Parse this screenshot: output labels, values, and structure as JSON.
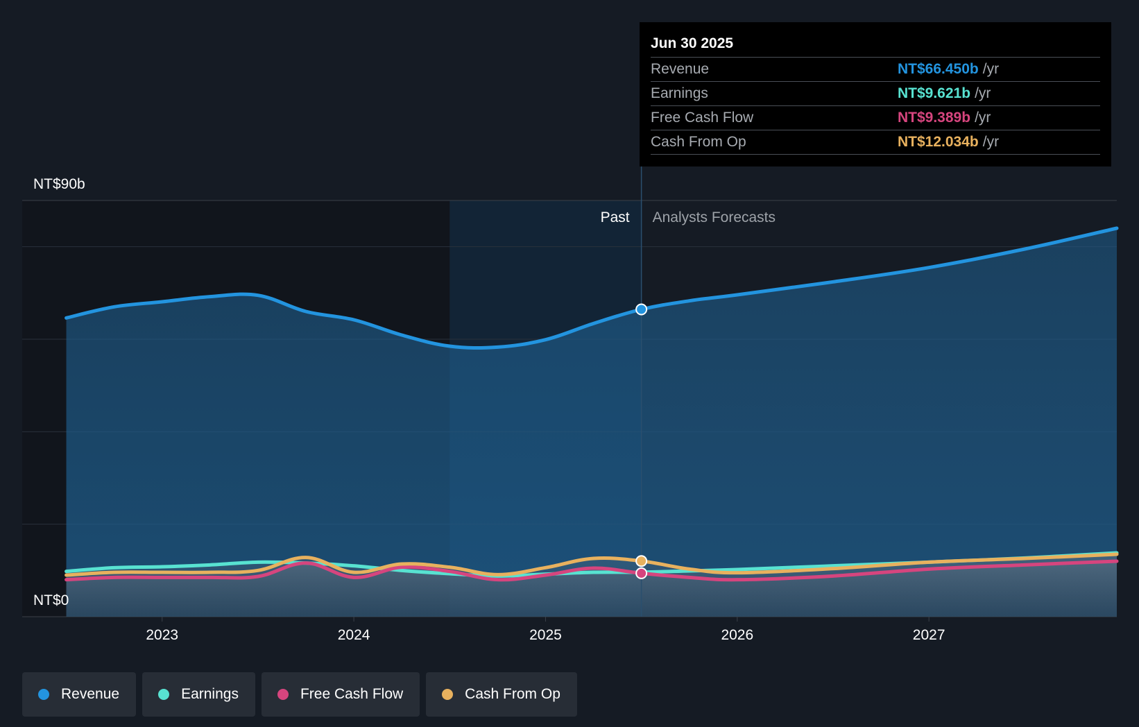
{
  "chart_data": {
    "type": "area",
    "x_ticks": [
      "2023",
      "2024",
      "2025",
      "2026",
      "2027"
    ],
    "x_tick_values": [
      2023.0,
      2024.0,
      2025.0,
      2026.0,
      2027.0
    ],
    "xlim": [
      2022.27,
      2027.98
    ],
    "ylim": [
      0,
      90
    ],
    "y_labels": {
      "top": "NT$90b",
      "bottom": "NT$0"
    },
    "y_gridlines": [
      0,
      20,
      40,
      60,
      80,
      90
    ],
    "divider_x": 2025.5,
    "highlight_start_x": 2024.5,
    "past_label": "Past",
    "forecast_label": "Analysts Forecasts",
    "series": [
      {
        "name": "Revenue",
        "color": "#2394df",
        "area": true,
        "points": [
          [
            2022.5,
            64.6
          ],
          [
            2022.75,
            67.0
          ],
          [
            2023.0,
            68.1
          ],
          [
            2023.25,
            69.2
          ],
          [
            2023.5,
            69.5
          ],
          [
            2023.75,
            66.0
          ],
          [
            2024.0,
            64.2
          ],
          [
            2024.25,
            60.9
          ],
          [
            2024.5,
            58.5
          ],
          [
            2024.75,
            58.3
          ],
          [
            2025.0,
            59.9
          ],
          [
            2025.25,
            63.4
          ],
          [
            2025.5,
            66.45
          ],
          [
            2025.75,
            68.3
          ],
          [
            2026.0,
            69.6
          ],
          [
            2026.5,
            72.4
          ],
          [
            2027.0,
            75.5
          ],
          [
            2027.5,
            79.5
          ],
          [
            2027.98,
            84.0
          ]
        ]
      },
      {
        "name": "Earnings",
        "color": "#58e2d1",
        "area": true,
        "points": [
          [
            2022.5,
            9.8
          ],
          [
            2022.75,
            10.6
          ],
          [
            2023.0,
            10.8
          ],
          [
            2023.25,
            11.2
          ],
          [
            2023.5,
            11.8
          ],
          [
            2023.75,
            11.6
          ],
          [
            2024.0,
            11.0
          ],
          [
            2024.25,
            10.0
          ],
          [
            2024.5,
            9.3
          ],
          [
            2024.75,
            8.8
          ],
          [
            2025.0,
            9.2
          ],
          [
            2025.25,
            9.6
          ],
          [
            2025.5,
            9.621
          ],
          [
            2025.75,
            9.9
          ],
          [
            2026.0,
            10.2
          ],
          [
            2026.5,
            11.0
          ],
          [
            2027.0,
            11.8
          ],
          [
            2027.5,
            12.7
          ],
          [
            2027.98,
            13.8
          ]
        ]
      },
      {
        "name": "Free Cash Flow",
        "color": "#d6457e",
        "area": true,
        "points": [
          [
            2022.5,
            8.0
          ],
          [
            2022.75,
            8.5
          ],
          [
            2023.0,
            8.5
          ],
          [
            2023.25,
            8.5
          ],
          [
            2023.5,
            8.7
          ],
          [
            2023.75,
            11.6
          ],
          [
            2024.0,
            8.5
          ],
          [
            2024.25,
            10.7
          ],
          [
            2024.5,
            9.8
          ],
          [
            2024.75,
            8.0
          ],
          [
            2025.0,
            9.0
          ],
          [
            2025.25,
            10.5
          ],
          [
            2025.5,
            9.389
          ],
          [
            2025.75,
            8.5
          ],
          [
            2026.0,
            8.0
          ],
          [
            2026.5,
            8.8
          ],
          [
            2027.0,
            10.3
          ],
          [
            2027.5,
            11.2
          ],
          [
            2027.98,
            12.0
          ]
        ]
      },
      {
        "name": "Cash From Op",
        "color": "#e8b15e",
        "area": true,
        "points": [
          [
            2022.5,
            9.0
          ],
          [
            2022.75,
            9.6
          ],
          [
            2023.0,
            9.6
          ],
          [
            2023.25,
            9.6
          ],
          [
            2023.5,
            10.0
          ],
          [
            2023.75,
            12.8
          ],
          [
            2024.0,
            9.6
          ],
          [
            2024.25,
            11.4
          ],
          [
            2024.5,
            10.7
          ],
          [
            2024.75,
            9.1
          ],
          [
            2025.0,
            10.6
          ],
          [
            2025.25,
            12.6
          ],
          [
            2025.5,
            12.034
          ],
          [
            2025.75,
            10.3
          ],
          [
            2026.0,
            9.5
          ],
          [
            2026.5,
            10.4
          ],
          [
            2027.0,
            11.8
          ],
          [
            2027.5,
            12.6
          ],
          [
            2027.98,
            13.5
          ]
        ]
      }
    ]
  },
  "tooltip": {
    "date": "Jun 30 2025",
    "rows": [
      {
        "label": "Revenue",
        "value": "NT$66.450b",
        "unit": "/yr",
        "color": "#2394df"
      },
      {
        "label": "Earnings",
        "value": "NT$9.621b",
        "unit": "/yr",
        "color": "#58e2d1"
      },
      {
        "label": "Free Cash Flow",
        "value": "NT$9.389b",
        "unit": "/yr",
        "color": "#d6457e"
      },
      {
        "label": "Cash From Op",
        "value": "NT$12.034b",
        "unit": "/yr",
        "color": "#e8b15e"
      }
    ]
  },
  "legend": [
    {
      "label": "Revenue",
      "color": "#2394df"
    },
    {
      "label": "Earnings",
      "color": "#58e2d1"
    },
    {
      "label": "Free Cash Flow",
      "color": "#d6457e"
    },
    {
      "label": "Cash From Op",
      "color": "#e8b15e"
    }
  ]
}
